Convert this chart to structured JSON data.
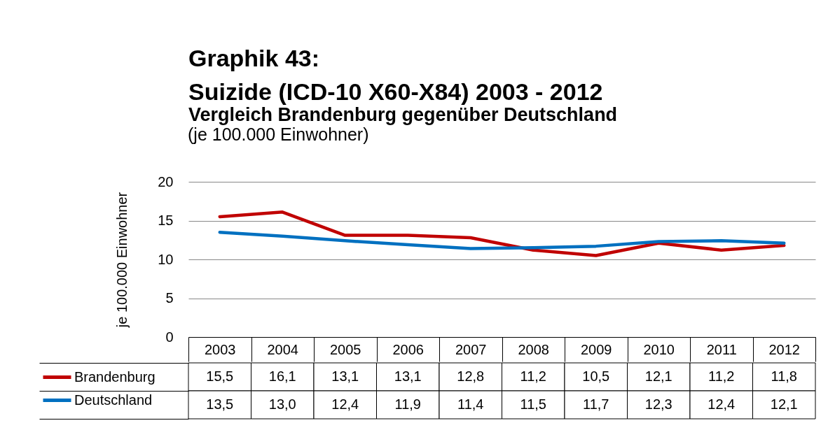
{
  "chart_data": {
    "type": "line",
    "title": "Graphik 43:\nSuizide (ICD-10 X60-X84) 2003 - 2012",
    "subtitle": "Vergleich Brandenburg gegenüber Deutschland",
    "annotations": [
      "(je 100.000 Einwohner)"
    ],
    "ylabel": "je 100.000 Einwohner",
    "categories": [
      "2003",
      "2004",
      "2005",
      "2006",
      "2007",
      "2008",
      "2009",
      "2010",
      "2011",
      "2012"
    ],
    "series": [
      {
        "name": "Brandenburg",
        "color": "#c00000",
        "values": [
          15.5,
          16.1,
          13.1,
          13.1,
          12.8,
          11.2,
          10.5,
          12.1,
          11.2,
          11.8
        ],
        "value_labels": [
          "15,5",
          "16,1",
          "13,1",
          "13,1",
          "12,8",
          "11,2",
          "10,5",
          "12,1",
          "11,2",
          "11,8"
        ]
      },
      {
        "name": "Deutschland",
        "color": "#0070c0",
        "values": [
          13.5,
          13.0,
          12.4,
          11.9,
          11.4,
          11.5,
          11.7,
          12.3,
          12.4,
          12.1
        ],
        "value_labels": [
          "13,5",
          "13,0",
          "12,4",
          "11,9",
          "11,4",
          "11,5",
          "11,7",
          "12,3",
          "12,4",
          "12,1"
        ]
      }
    ],
    "ylim": [
      0,
      20
    ],
    "yticks": [
      0,
      5,
      10,
      15,
      20
    ],
    "grid": "y",
    "legend": "bottom left",
    "marker": "none",
    "line_style": "solid"
  }
}
